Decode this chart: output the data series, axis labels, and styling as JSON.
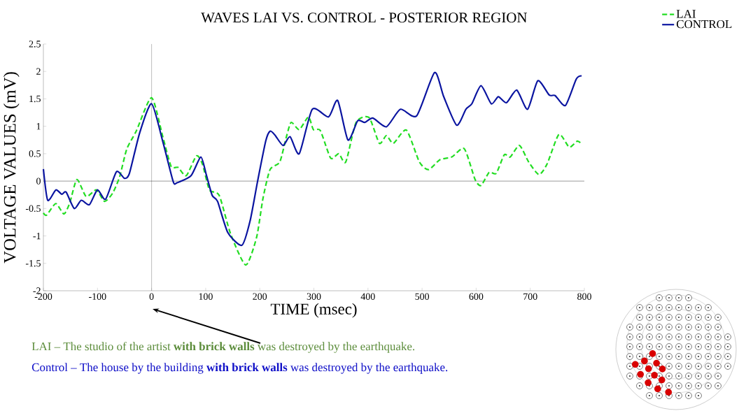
{
  "chart_data": {
    "type": "line",
    "title": "WAVES LAI VS. CONTROL - POSTERIOR REGION",
    "xlabel": "TIME (msec)",
    "ylabel": "VOLTAGE VALUES (mV)",
    "xlim": [
      -200,
      800
    ],
    "ylim": [
      -2,
      2.5
    ],
    "xticks": [
      -200,
      -100,
      0,
      100,
      200,
      300,
      400,
      500,
      600,
      700,
      800
    ],
    "yticks": [
      -2,
      -1.5,
      -1,
      -0.5,
      0,
      0.5,
      1,
      1.5,
      2,
      2.5
    ],
    "grid": false,
    "legend": "top right",
    "ref_lines": [
      {
        "axis": "x",
        "value": 0
      },
      {
        "axis": "y",
        "value": 0
      }
    ],
    "series": [
      {
        "name": "LAI",
        "color": "#22dd22",
        "line_style": "dashed",
        "x": [
          -200,
          -194,
          -177,
          -162,
          -151,
          -138,
          -121,
          -102,
          -87,
          -72,
          -59,
          -46,
          -28,
          0,
          21,
          36,
          49,
          64,
          83,
          94,
          107,
          125,
          146,
          174,
          194,
          206,
          219,
          237,
          249,
          258,
          273,
          290,
          299,
          312,
          331,
          346,
          359,
          378,
          402,
          421,
          434,
          447,
          471,
          495,
          512,
          533,
          555,
          578,
          598,
          609,
          624,
          637,
          652,
          663,
          680,
          697,
          716,
          731,
          753,
          772,
          787,
          796
        ],
        "values": [
          -0.58,
          -0.62,
          -0.41,
          -0.6,
          -0.39,
          0.03,
          -0.28,
          -0.16,
          -0.37,
          -0.22,
          0.08,
          0.58,
          0.92,
          1.52,
          0.8,
          0.27,
          0.25,
          0.1,
          0.46,
          0.31,
          -0.16,
          -0.26,
          -0.96,
          -1.53,
          -1.03,
          -0.31,
          0.21,
          0.35,
          0.8,
          1.07,
          0.94,
          1.17,
          0.94,
          0.92,
          0.42,
          0.5,
          0.35,
          1.07,
          1.16,
          0.69,
          0.83,
          0.69,
          0.93,
          0.35,
          0.21,
          0.39,
          0.44,
          0.59,
          0.03,
          -0.08,
          0.16,
          0.14,
          0.48,
          0.44,
          0.65,
          0.35,
          0.12,
          0.31,
          0.85,
          0.62,
          0.73,
          0.67
        ]
      },
      {
        "name": "CONTROL",
        "color": "#0a14a0",
        "line_style": "solid",
        "x": [
          -200,
          -192,
          -177,
          -166,
          -158,
          -143,
          -130,
          -115,
          -100,
          -85,
          -65,
          -50,
          -41,
          -22,
          0,
          21,
          40,
          47,
          73,
          91,
          101,
          112,
          122,
          141,
          167,
          182,
          196,
          211,
          219,
          228,
          243,
          256,
          273,
          297,
          327,
          344,
          363,
          381,
          394,
          409,
          434,
          460,
          490,
          523,
          540,
          564,
          581,
          592,
          609,
          628,
          641,
          656,
          675,
          695,
          714,
          735,
          746,
          765,
          785,
          795
        ],
        "values": [
          0.22,
          -0.35,
          -0.16,
          -0.24,
          -0.2,
          -0.5,
          -0.35,
          -0.43,
          -0.16,
          -0.33,
          0.17,
          0.05,
          0.14,
          0.88,
          1.41,
          0.71,
          -0.01,
          -0.03,
          0.1,
          0.44,
          0.12,
          -0.26,
          -0.37,
          -0.94,
          -1.17,
          -0.73,
          0.0,
          0.73,
          0.91,
          0.84,
          0.65,
          0.81,
          0.5,
          1.31,
          1.17,
          1.47,
          0.75,
          1.1,
          1.07,
          1.15,
          0.99,
          1.31,
          1.19,
          1.98,
          1.54,
          1.02,
          1.31,
          1.41,
          1.74,
          1.41,
          1.54,
          1.43,
          1.66,
          1.31,
          1.83,
          1.57,
          1.56,
          1.38,
          1.86,
          1.92
        ]
      }
    ],
    "annotations": [
      "LAI – The studio of the artist **with brick walls** was destroyed by the earthquake.",
      "Control – The house by the building **with brick walls** was destroyed by the earthquake."
    ]
  }
}
